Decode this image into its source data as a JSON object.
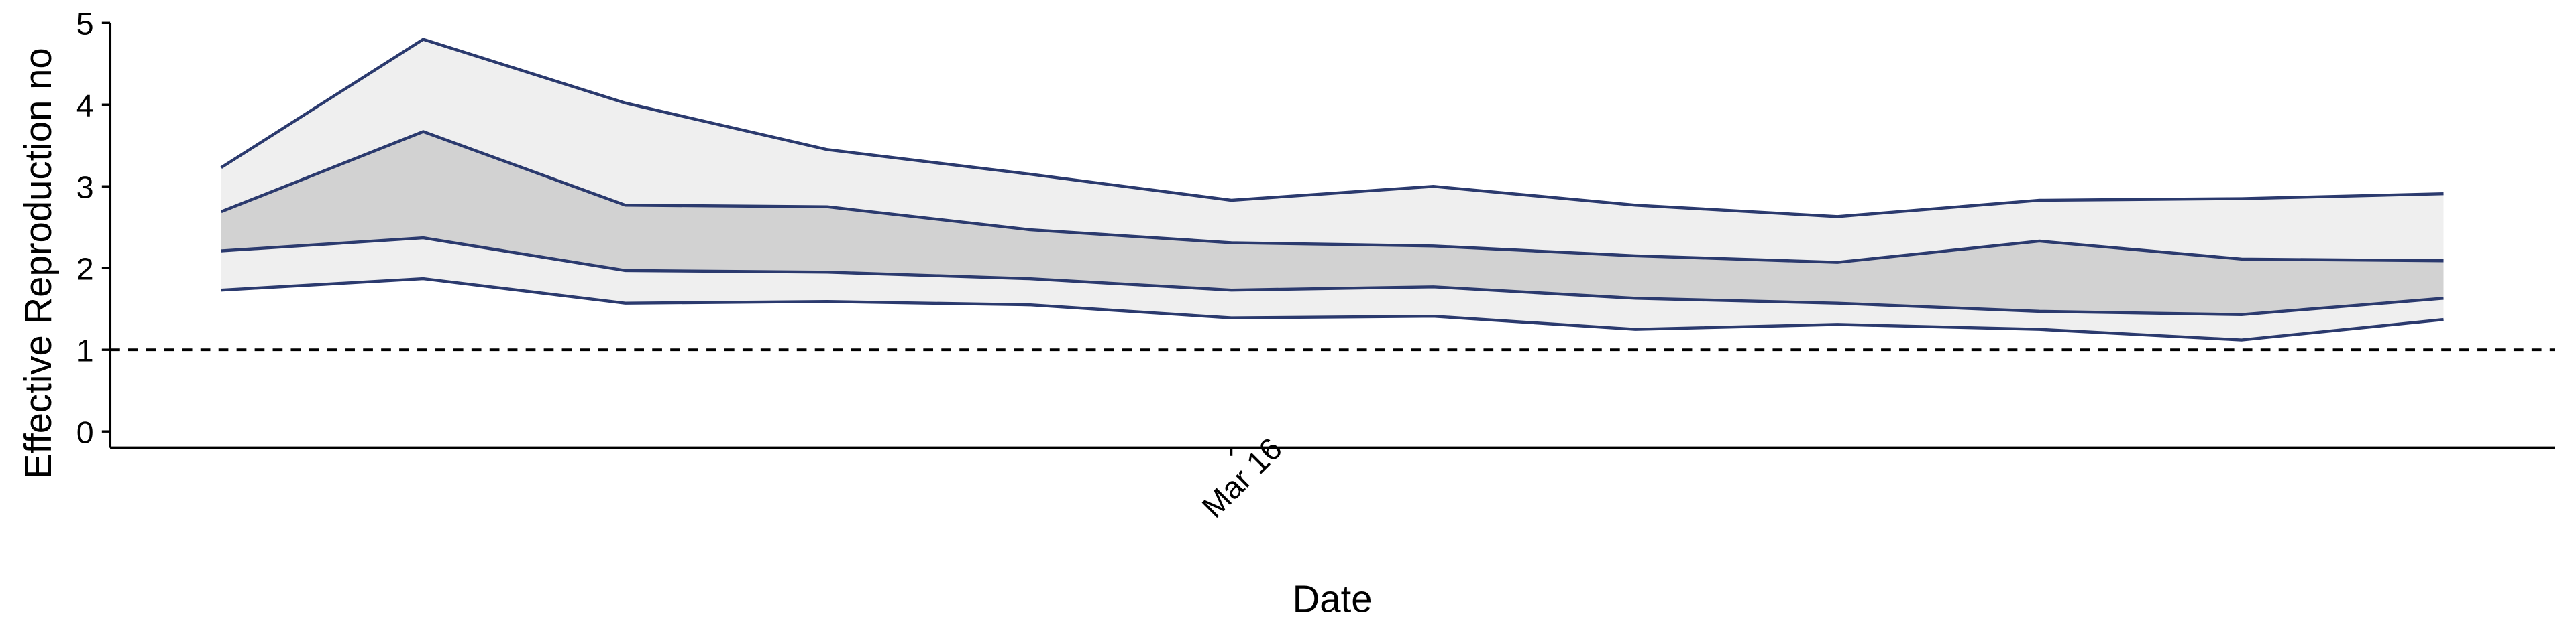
{
  "chart_data": {
    "type": "ribbon",
    "x_label": "Date",
    "y_label": "Effective Reproduction no",
    "categories": [
      null,
      null,
      null,
      null,
      null,
      "Mar 16",
      null,
      null,
      null,
      null,
      null,
      null
    ],
    "series": [
      {
        "color": "#2b3a6e",
        "values": [
          3.23,
          4.8,
          4.02,
          3.45,
          3.15,
          2.83,
          3.0,
          2.77,
          2.63,
          2.83,
          2.85,
          2.91
        ]
      },
      {
        "color": "#2b3a6e",
        "values": [
          2.69,
          3.67,
          2.77,
          2.75,
          2.47,
          2.31,
          2.27,
          2.15,
          2.07,
          2.33,
          2.11,
          2.09
        ]
      },
      {
        "color": "#2b3a6e",
        "values": [
          2.21,
          2.37,
          1.97,
          1.95,
          1.87,
          1.73,
          1.77,
          1.63,
          1.57,
          1.47,
          1.43,
          1.63
        ]
      },
      {
        "color": "#2b3a6e",
        "values": [
          1.73,
          1.87,
          1.57,
          1.59,
          1.55,
          1.39,
          1.41,
          1.25,
          1.31,
          1.25,
          1.12,
          1.37
        ]
      }
    ],
    "band_fills": [
      "#efefef",
      "#d2d2d2"
    ],
    "reference_line": 1,
    "ylim": [
      -0.2,
      5
    ],
    "yticks": [
      0,
      1,
      2,
      3,
      4,
      5
    ]
  }
}
